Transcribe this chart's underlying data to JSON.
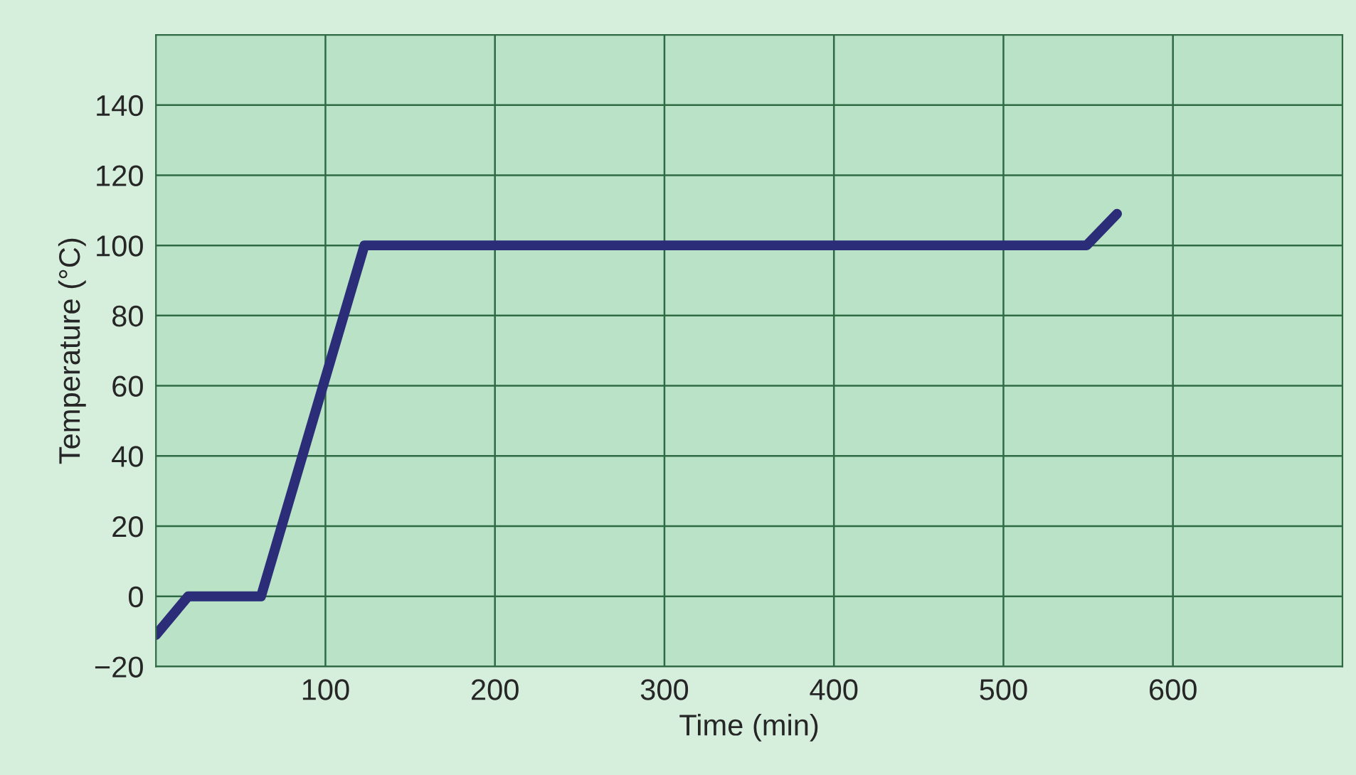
{
  "chart_data": {
    "type": "line",
    "xlabel": "Time (min)",
    "ylabel": "Temperature (°C)",
    "x": [
      0,
      19,
      62,
      123,
      549,
      567
    ],
    "series": [
      {
        "color": "#2b2d78",
        "values": [
          -11,
          0,
          0,
          100,
          100,
          109
        ]
      }
    ],
    "xlim": [
      0,
      700
    ],
    "xticks": [
      100,
      200,
      300,
      400,
      500,
      600
    ],
    "ylim": [
      -20,
      160
    ],
    "yticks": [
      {
        "value": -20,
        "label": "−20"
      },
      0,
      20,
      40,
      60,
      80,
      100,
      120,
      140
    ],
    "grid": true,
    "marker": "none",
    "line_style": "solid"
  }
}
